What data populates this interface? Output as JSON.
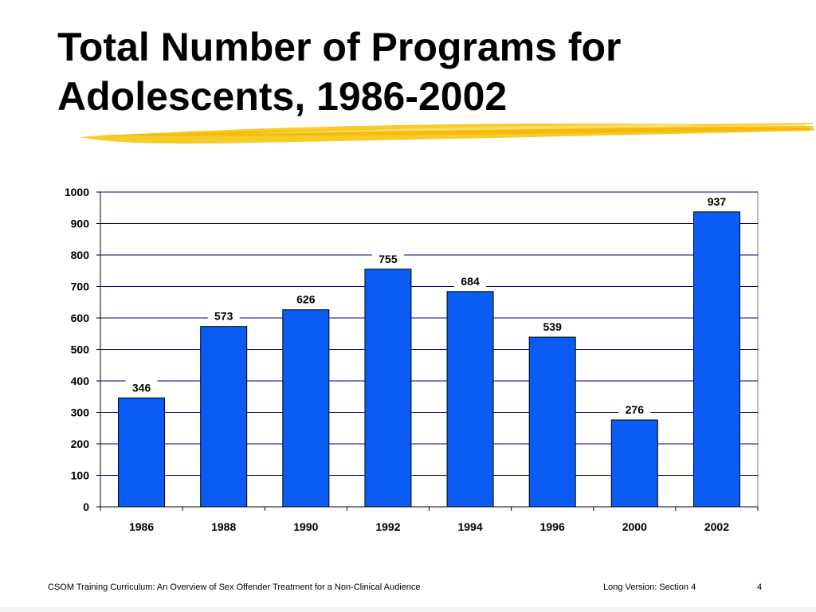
{
  "slide": {
    "title_line1": "Total Number of Programs for",
    "title_line2": "Adolescents, 1986-2002",
    "footer_left": "CSOM Training Curriculum:  An Overview of Sex Offender Treatment for a Non-Clinical Audience",
    "footer_middle": "Long Version:  Section 4",
    "page_number": "4",
    "accent_color": "#f5c518"
  },
  "chart_data": {
    "type": "bar",
    "categories": [
      "1986",
      "1988",
      "1990",
      "1992",
      "1994",
      "1996",
      "2000",
      "2002"
    ],
    "values": [
      346,
      573,
      626,
      755,
      684,
      539,
      276,
      937
    ],
    "data_labels": [
      "346",
      "573",
      "626",
      "755",
      "684",
      "539",
      "276",
      "937"
    ],
    "title": "",
    "xlabel": "",
    "ylabel": "",
    "ylim": [
      0,
      1000
    ],
    "yticks": [
      0,
      100,
      200,
      300,
      400,
      500,
      600,
      700,
      800,
      900,
      1000
    ],
    "ytick_labels": [
      "0",
      "100",
      "200",
      "300",
      "400",
      "500",
      "600",
      "700",
      "800",
      "900",
      "1000"
    ],
    "grid": true,
    "legend": "none",
    "bar_color": "#0a5cf5",
    "bar_edge_color": "#000000",
    "grid_color": "#000080"
  }
}
